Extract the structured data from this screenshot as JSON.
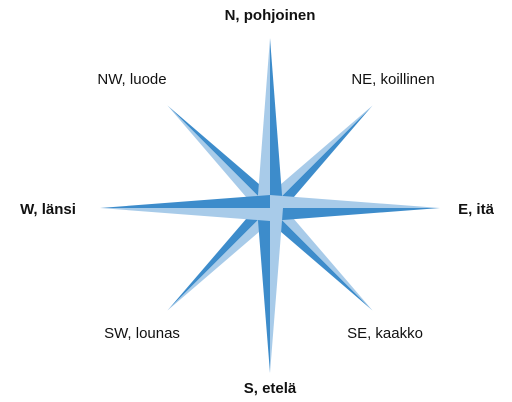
{
  "directions": {
    "n": "N, pohjoinen",
    "ne": "NE, koillinen",
    "e": "E, itä",
    "se": "SE, kaakko",
    "s": "S, etelä",
    "sw": "SW, lounas",
    "w": "W, länsi",
    "nw": "NW, luode"
  }
}
